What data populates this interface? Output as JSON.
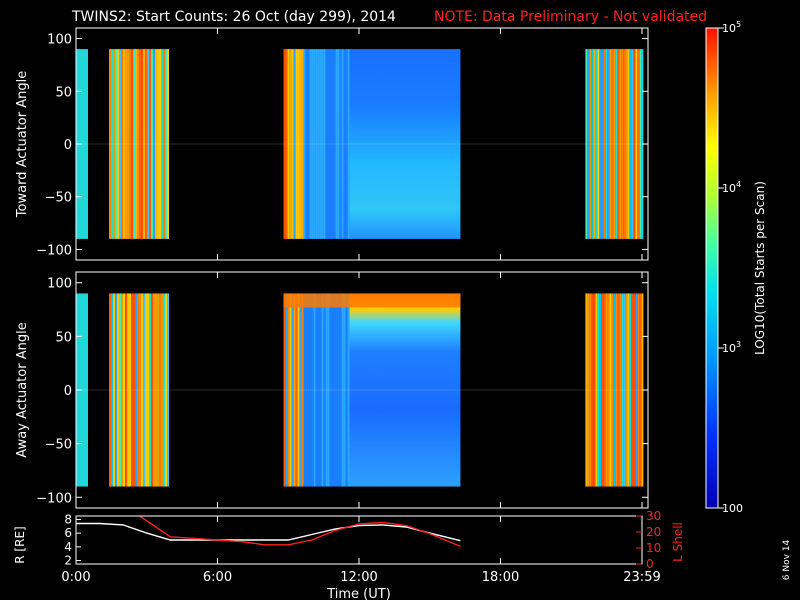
{
  "header": {
    "title": "TWINS2: Start Counts: 26 Oct (day 299), 2014",
    "note": "NOTE: Data Preliminary - Not validated"
  },
  "side_date": "6 Nov 14",
  "colorbar": {
    "label": "LOG10(Total Starts per Scan)",
    "ticks": [
      "100",
      "10^3",
      "10^4",
      "10^5"
    ],
    "range": [
      100,
      100000
    ],
    "scale": "log"
  },
  "chart_data": [
    {
      "type": "heatmap",
      "ylabel": "Toward Actuator Angle",
      "ylim": [
        -110,
        110
      ],
      "yticks": [
        100,
        50,
        0,
        -50,
        -100
      ],
      "xlim_hours": [
        0,
        24
      ],
      "data_window_deg": [
        -90,
        90
      ],
      "observation_intervals_hours": [
        [
          -0.2,
          0.0
        ],
        [
          1.4,
          3.9
        ],
        [
          8.8,
          16.3
        ],
        [
          21.6,
          24.0
        ]
      ],
      "color_scheme": "rainbow-log"
    },
    {
      "type": "heatmap",
      "ylabel": "Away Actuator Angle",
      "ylim": [
        -110,
        110
      ],
      "yticks": [
        100,
        50,
        0,
        -50,
        -100
      ],
      "xlim_hours": [
        0,
        24
      ],
      "data_window_deg": [
        -90,
        90
      ],
      "observation_intervals_hours": [
        [
          -0.2,
          0.0
        ],
        [
          1.4,
          3.9
        ],
        [
          8.8,
          16.3
        ],
        [
          21.6,
          24.0
        ]
      ],
      "color_scheme": "rainbow-log"
    },
    {
      "type": "line",
      "ylabel_left": "R [RE]",
      "ylabel_right": "L Shell",
      "yticks_left": [
        8,
        6,
        4,
        2
      ],
      "yticks_right": [
        30,
        20,
        10,
        0
      ],
      "ylim_left": [
        1.5,
        8.5
      ],
      "ylim_right": [
        0,
        30
      ],
      "xlabel": "Time (UT)",
      "xticks": [
        "0:00",
        "6:00",
        "12:00",
        "18:00",
        "23:59"
      ],
      "xtick_hours": [
        0,
        6,
        12,
        18,
        24
      ],
      "series": [
        {
          "name": "R [RE]",
          "color": "#ffffff",
          "axis": "left",
          "x": [
            0,
            1,
            2,
            3,
            4,
            5,
            6,
            7,
            8,
            9,
            10,
            11,
            12,
            13,
            14,
            15,
            16.3
          ],
          "y": [
            7.4,
            7.4,
            7.2,
            6.0,
            5.0,
            5.0,
            5.0,
            5.0,
            5.0,
            5.0,
            5.8,
            6.6,
            7.1,
            7.2,
            6.9,
            6.0,
            4.9
          ]
        },
        {
          "name": "L Shell",
          "color": "#ff2020",
          "axis": "right",
          "x": [
            2.7,
            3.2,
            3.9,
            4.0,
            5.0,
            6.0,
            7.0,
            8.0,
            9.0,
            10.0,
            11.0,
            12.0,
            13.0,
            14.0,
            15.0,
            16.3
          ],
          "y": [
            30.0,
            25.0,
            18.0,
            17.0,
            16.0,
            15.0,
            14.0,
            12.0,
            12.0,
            15.0,
            21.0,
            25.0,
            26.0,
            24.0,
            19.0,
            11.0
          ]
        }
      ]
    }
  ]
}
